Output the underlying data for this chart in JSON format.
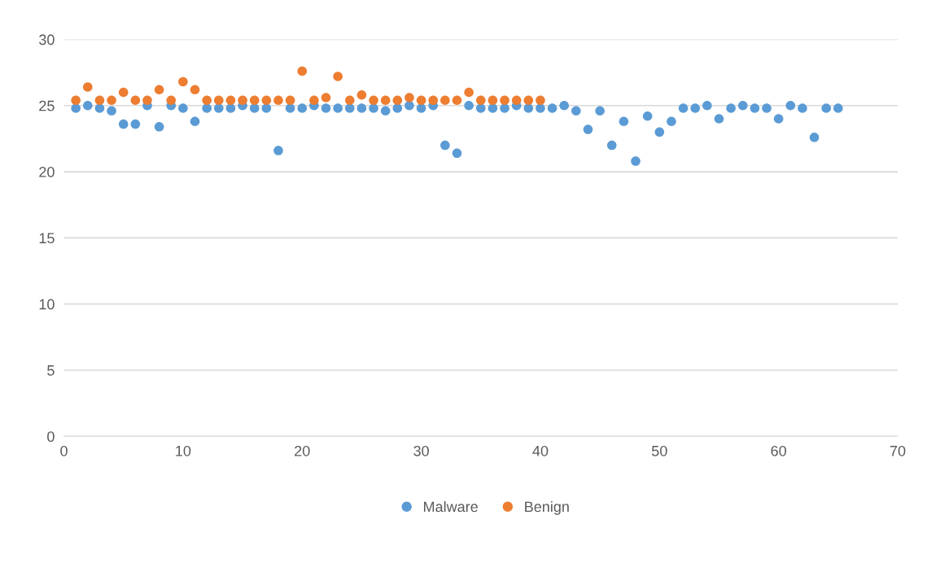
{
  "chart_data": {
    "type": "scatter",
    "xlim": [
      0,
      70
    ],
    "xticks": [
      0,
      10,
      20,
      30,
      40,
      50,
      60,
      70
    ],
    "ylim": [
      0,
      30
    ],
    "yticks": [
      0,
      5,
      10,
      15,
      20,
      25,
      30
    ],
    "grid": "y",
    "legend": "bottom",
    "marker": "circle",
    "series": [
      {
        "name": "Malware",
        "color": "#5b9bd5",
        "x": [
          1,
          2,
          3,
          4,
          5,
          6,
          7,
          8,
          9,
          10,
          11,
          12,
          13,
          14,
          15,
          16,
          17,
          18,
          19,
          20,
          21,
          22,
          23,
          24,
          25,
          26,
          27,
          28,
          29,
          30,
          31,
          32,
          33,
          34,
          35,
          36,
          37,
          38,
          39,
          40,
          41,
          42,
          43,
          44,
          45,
          46,
          47,
          48,
          49,
          50,
          51,
          52,
          53,
          54,
          55,
          56,
          57,
          58,
          59,
          60,
          61,
          62,
          63,
          64,
          65
        ],
        "values": [
          24.8,
          25,
          24.8,
          24.6,
          23.6,
          23.6,
          25,
          23.4,
          25,
          24.8,
          23.8,
          24.8,
          24.8,
          24.8,
          25,
          24.8,
          24.8,
          21.6,
          24.8,
          24.8,
          25,
          24.8,
          24.8,
          24.8,
          24.8,
          24.8,
          24.6,
          24.8,
          25,
          24.8,
          25,
          22,
          21.4,
          25,
          24.8,
          24.8,
          24.8,
          25,
          24.8,
          24.8,
          24.8,
          25,
          24.6,
          23.2,
          24.6,
          22,
          23.8,
          20.8,
          24.2,
          23,
          23.8,
          24.8,
          24.8,
          25,
          24,
          24.8,
          25,
          24.8,
          24.8,
          24,
          25,
          24.8,
          22.6,
          24.8,
          24.8
        ]
      },
      {
        "name": "Benign",
        "color": "#ed7d31",
        "x": [
          1,
          2,
          3,
          4,
          5,
          6,
          7,
          8,
          9,
          10,
          11,
          12,
          13,
          14,
          15,
          16,
          17,
          18,
          19,
          20,
          21,
          22,
          23,
          24,
          25,
          26,
          27,
          28,
          29,
          30,
          31,
          32,
          33,
          34,
          35,
          36,
          37,
          38,
          39,
          40
        ],
        "values": [
          25.4,
          26.4,
          25.4,
          25.4,
          26,
          25.4,
          25.4,
          26.2,
          25.4,
          26.8,
          26.2,
          25.4,
          25.4,
          25.4,
          25.4,
          25.4,
          25.4,
          25.4,
          25.4,
          27.6,
          25.4,
          25.6,
          27.2,
          25.4,
          25.8,
          25.4,
          25.4,
          25.4,
          25.6,
          25.4,
          25.4,
          25.4,
          25.4,
          26,
          25.4,
          25.4,
          25.4,
          25.4,
          25.4,
          25.4
        ]
      }
    ]
  }
}
